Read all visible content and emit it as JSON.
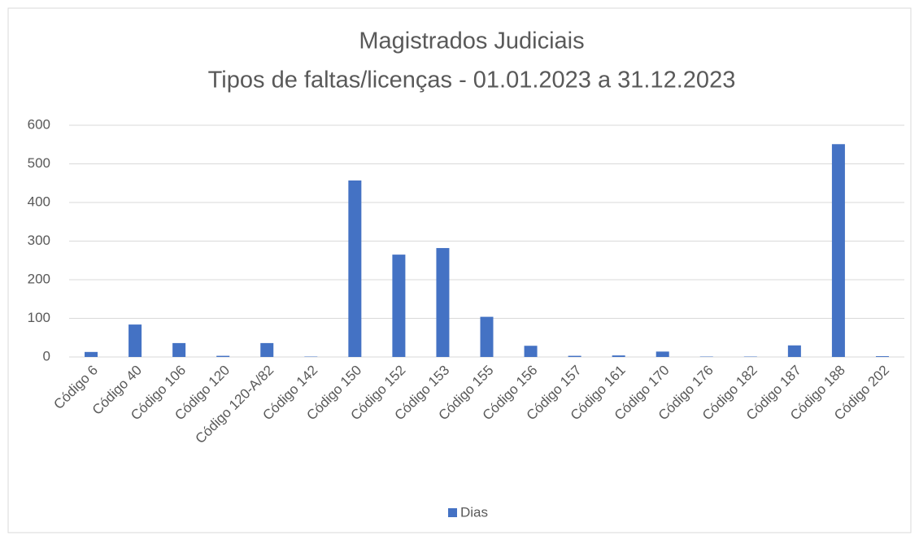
{
  "chart_data": {
    "type": "bar",
    "title": "Magistrados Judiciais",
    "subtitle": "Tipos de faltas/licenças - 01.01.2023 a 31.12.2023",
    "categories": [
      "Código 6",
      "Código 40",
      "Código 106",
      "Código 120",
      "Código 120-A/82",
      "Código 142",
      "Código 150",
      "Código 152",
      "Código 153",
      "Código 155",
      "Código 156",
      "Código 157",
      "Código 161",
      "Código 170",
      "Código 176",
      "Código 182",
      "Código 187",
      "Código 188",
      "Código 202"
    ],
    "series": [
      {
        "name": "Dias",
        "color": "#4472c4",
        "values": [
          13,
          84,
          36,
          3,
          36,
          1,
          457,
          265,
          282,
          104,
          29,
          3,
          4,
          14,
          1,
          1,
          30,
          551,
          2
        ]
      }
    ],
    "ylim": [
      0,
      600
    ],
    "yticks": [
      0,
      100,
      200,
      300,
      400,
      500,
      600
    ],
    "grid": true,
    "legend": "bottom"
  }
}
